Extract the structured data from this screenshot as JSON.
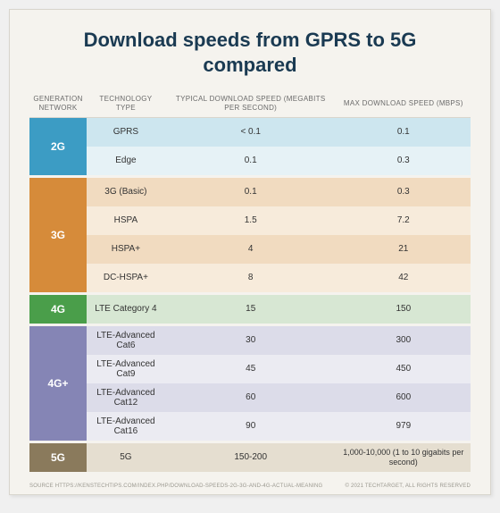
{
  "background_color": "#f5f3ee",
  "border_color": "#d8d5cd",
  "title": "Download speeds from GPRS to 5G compared",
  "title_color": "#1a3a52",
  "title_fontsize": 22,
  "columns": [
    "GENERATION NETWORK",
    "TECHNOLOGY TYPE",
    "TYPICAL DOWNLOAD SPEED (MEGABITS PER SECOND)",
    "MAX DOWNLOAD SPEED (MBPS)"
  ],
  "header_text_color": "#6b6b6b",
  "header_fontsize": 8,
  "body_fontsize": 10,
  "groups": [
    {
      "label": "2G",
      "label_bg": "#3c9cc4",
      "row_colors": [
        "#cde6ef",
        "#e6f2f6"
      ],
      "rows": [
        {
          "tech": "GPRS",
          "typical": "< 0.1",
          "max": "0.1"
        },
        {
          "tech": "Edge",
          "typical": "0.1",
          "max": "0.3"
        }
      ]
    },
    {
      "label": "3G",
      "label_bg": "#d68b3a",
      "row_colors": [
        "#f1dbc0",
        "#f7ebdb",
        "#f1dbc0",
        "#f7ebdb"
      ],
      "rows": [
        {
          "tech": "3G (Basic)",
          "typical": "0.1",
          "max": "0.3"
        },
        {
          "tech": "HSPA",
          "typical": "1.5",
          "max": "7.2"
        },
        {
          "tech": "HSPA+",
          "typical": "4",
          "max": "21"
        },
        {
          "tech": "DC-HSPA+",
          "typical": "8",
          "max": "42"
        }
      ]
    },
    {
      "label": "4G",
      "label_bg": "#4a9e4a",
      "row_colors": [
        "#d7e7d3"
      ],
      "rows": [
        {
          "tech": "LTE Category 4",
          "typical": "15",
          "max": "150"
        }
      ]
    },
    {
      "label": "4G+",
      "label_bg": "#8585b5",
      "row_colors": [
        "#dcdce9",
        "#ebebf2",
        "#dcdce9",
        "#ebebf2"
      ],
      "rows": [
        {
          "tech": "LTE-Advanced Cat6",
          "typical": "30",
          "max": "300"
        },
        {
          "tech": "LTE-Advanced Cat9",
          "typical": "45",
          "max": "450"
        },
        {
          "tech": "LTE-Advanced Cat12",
          "typical": "60",
          "max": "600"
        },
        {
          "tech": "LTE-Advanced Cat16",
          "typical": "90",
          "max": "979"
        }
      ]
    },
    {
      "label": "5G",
      "label_bg": "#8a7a5c",
      "row_colors": [
        "#e5ded0"
      ],
      "rows": [
        {
          "tech": "5G",
          "typical": "150-200",
          "max": "1,000-10,000 (1 to 10 gigabits per second)"
        }
      ]
    }
  ],
  "footer_left": "SOURCE HTTPS://KENSTECHTIPS.COM/INDEX.PHP/DOWNLOAD-SPEEDS-2G-3G-AND-4G-ACTUAL-MEANING",
  "footer_right": "© 2021 TECHTARGET, ALL RIGHTS RESERVED",
  "footer_brand": "TechTarget",
  "footer_color": "#9a988f"
}
